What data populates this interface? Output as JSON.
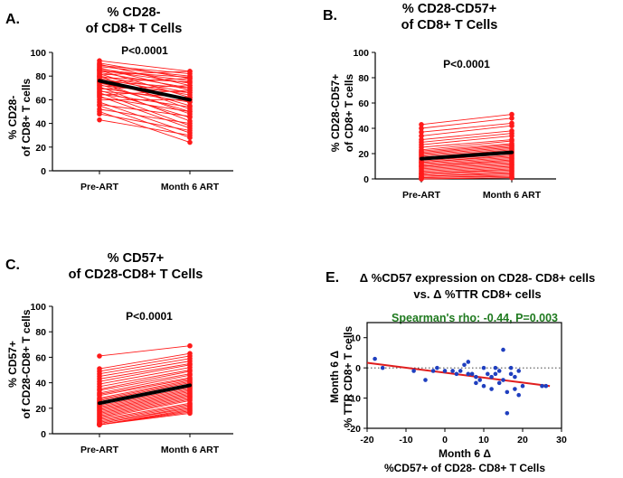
{
  "colors": {
    "lines": "#ff1a1a",
    "mean": "#000000",
    "points": "#1f3fbf",
    "regression": "#e01e1e",
    "annotation": "#1f7a1f"
  },
  "chart_data": [
    {
      "id": "A",
      "type": "line",
      "panel_label": "A.",
      "title_lines": [
        "% CD28-",
        "of CD8+ T Cells"
      ],
      "ylabel_lines": [
        "% CD28-",
        "of CD8+ T cells"
      ],
      "categories": [
        "Pre-ART",
        "Month 6 ART"
      ],
      "ylim": [
        0,
        100
      ],
      "yticks": [
        0,
        20,
        40,
        60,
        80,
        100
      ],
      "annotation": "P<0.0001",
      "mean": [
        76,
        60
      ],
      "pairs": [
        [
          93,
          84
        ],
        [
          91,
          78
        ],
        [
          90,
          72
        ],
        [
          89,
          82
        ],
        [
          88,
          80
        ],
        [
          87,
          68
        ],
        [
          86,
          76
        ],
        [
          85,
          74
        ],
        [
          85,
          62
        ],
        [
          84,
          79
        ],
        [
          83,
          70
        ],
        [
          82,
          58
        ],
        [
          81,
          84
        ],
        [
          80,
          66
        ],
        [
          80,
          52
        ],
        [
          79,
          75
        ],
        [
          78,
          64
        ],
        [
          77,
          55
        ],
        [
          76,
          70
        ],
        [
          75,
          48
        ],
        [
          75,
          78
        ],
        [
          74,
          60
        ],
        [
          73,
          50
        ],
        [
          72,
          66
        ],
        [
          71,
          42
        ],
        [
          70,
          58
        ],
        [
          69,
          72
        ],
        [
          68,
          45
        ],
        [
          67,
          62
        ],
        [
          66,
          38
        ],
        [
          65,
          54
        ],
        [
          64,
          68
        ],
        [
          63,
          36
        ],
        [
          62,
          50
        ],
        [
          60,
          60
        ],
        [
          58,
          32
        ],
        [
          56,
          46
        ],
        [
          55,
          28
        ],
        [
          52,
          40
        ],
        [
          50,
          24
        ],
        [
          48,
          34
        ],
        [
          43,
          30
        ]
      ]
    },
    {
      "id": "B",
      "type": "line",
      "panel_label": "B.",
      "title_lines": [
        "% CD28-CD57+",
        "of CD8+ T Cells"
      ],
      "ylabel_lines": [
        "% CD28-CD57+",
        "of CD8+ T cells"
      ],
      "categories": [
        "Pre-ART",
        "Month 6 ART"
      ],
      "ylim": [
        0,
        100
      ],
      "yticks": [
        0,
        20,
        40,
        60,
        80,
        100
      ],
      "annotation": "P<0.0001",
      "mean": [
        16,
        21
      ],
      "pairs": [
        [
          43,
          51
        ],
        [
          40,
          48
        ],
        [
          37,
          44
        ],
        [
          34,
          42
        ],
        [
          31,
          38
        ],
        [
          29,
          36
        ],
        [
          27,
          34
        ],
        [
          25,
          31
        ],
        [
          23,
          30
        ],
        [
          22,
          28
        ],
        [
          21,
          27
        ],
        [
          20,
          26
        ],
        [
          19,
          25
        ],
        [
          18,
          24
        ],
        [
          17,
          23
        ],
        [
          16,
          22
        ],
        [
          15,
          21
        ],
        [
          14,
          20
        ],
        [
          13,
          19
        ],
        [
          13,
          18
        ],
        [
          12,
          17
        ],
        [
          11,
          16
        ],
        [
          10,
          15
        ],
        [
          10,
          14
        ],
        [
          9,
          13
        ],
        [
          8,
          12
        ],
        [
          7,
          11
        ],
        [
          6,
          10
        ],
        [
          5,
          9
        ],
        [
          4,
          8
        ],
        [
          4,
          7
        ],
        [
          3,
          6
        ],
        [
          2,
          5
        ],
        [
          2,
          4
        ],
        [
          1,
          3
        ],
        [
          1,
          2
        ],
        [
          0,
          1
        ],
        [
          0,
          1
        ]
      ]
    },
    {
      "id": "C",
      "type": "line",
      "panel_label": "C.",
      "title_lines": [
        "% CD57+",
        "of CD28-CD8+ T Cells"
      ],
      "ylabel_lines": [
        "% CD57+",
        "of CD28-CD8+ T cells"
      ],
      "categories": [
        "Pre-ART",
        "Month 6 ART"
      ],
      "ylim": [
        0,
        100
      ],
      "yticks": [
        0,
        20,
        40,
        60,
        80,
        100
      ],
      "annotation": "P<0.0001",
      "mean": [
        24,
        38
      ],
      "pairs": [
        [
          61,
          69
        ],
        [
          51,
          63
        ],
        [
          49,
          61
        ],
        [
          47,
          59
        ],
        [
          45,
          57
        ],
        [
          43,
          55
        ],
        [
          41,
          54
        ],
        [
          39,
          52
        ],
        [
          37,
          50
        ],
        [
          35,
          49
        ],
        [
          34,
          47
        ],
        [
          32,
          46
        ],
        [
          31,
          44
        ],
        [
          30,
          43
        ],
        [
          28,
          42
        ],
        [
          27,
          41
        ],
        [
          26,
          40
        ],
        [
          25,
          39
        ],
        [
          24,
          38
        ],
        [
          23,
          37
        ],
        [
          22,
          36
        ],
        [
          21,
          35
        ],
        [
          20,
          34
        ],
        [
          19,
          33
        ],
        [
          18,
          32
        ],
        [
          17,
          31
        ],
        [
          16,
          30
        ],
        [
          15,
          29
        ],
        [
          14,
          28
        ],
        [
          13,
          27
        ],
        [
          12,
          26
        ],
        [
          11,
          24
        ],
        [
          10,
          23
        ],
        [
          9,
          22
        ],
        [
          8,
          21
        ],
        [
          8,
          20
        ],
        [
          7,
          19
        ],
        [
          7,
          18
        ],
        [
          7,
          17
        ],
        [
          7,
          16
        ]
      ]
    },
    {
      "id": "E",
      "type": "scatter",
      "panel_label": "E.",
      "title_lines": [
        "Δ %CD57 expression on CD28- CD8+ cells",
        "vs. Δ %TTR CD8+ cells"
      ],
      "ylabel_lines": [
        "Month 6 Δ",
        "% TTR CD8+ T cells"
      ],
      "xlabel_lines": [
        "Month 6 Δ",
        "%CD57+ of CD28- CD8+ T Cells"
      ],
      "xlim": [
        -20,
        30
      ],
      "ylim": [
        -20,
        15
      ],
      "xticks": [
        -20,
        -10,
        0,
        10,
        20,
        30
      ],
      "yticks": [
        -20,
        -10,
        0,
        10
      ],
      "annotation": "Spearman's rho: -0.44, P=0.003",
      "regression": {
        "x": [
          -20,
          27
        ],
        "y": [
          1.7,
          -6
        ]
      },
      "points": [
        [
          -18,
          3
        ],
        [
          -16,
          0
        ],
        [
          -8,
          -1
        ],
        [
          -5,
          -4
        ],
        [
          -3,
          -1
        ],
        [
          -2,
          0
        ],
        [
          0,
          -1
        ],
        [
          2,
          -1
        ],
        [
          3,
          -2
        ],
        [
          4,
          -1
        ],
        [
          5,
          1
        ],
        [
          6,
          -2
        ],
        [
          6,
          2
        ],
        [
          7,
          -2
        ],
        [
          8,
          -3
        ],
        [
          8,
          -5
        ],
        [
          9,
          -4
        ],
        [
          10,
          0
        ],
        [
          10,
          -6
        ],
        [
          11,
          -2
        ],
        [
          12,
          -3
        ],
        [
          12,
          -7
        ],
        [
          13,
          0
        ],
        [
          13,
          -2
        ],
        [
          14,
          -1
        ],
        [
          14,
          -5
        ],
        [
          15,
          -4
        ],
        [
          15,
          6
        ],
        [
          16,
          -15
        ],
        [
          16,
          -8
        ],
        [
          17,
          0
        ],
        [
          17,
          -2
        ],
        [
          18,
          -3
        ],
        [
          18,
          -7
        ],
        [
          19,
          -1
        ],
        [
          19,
          -9
        ],
        [
          20,
          -6
        ],
        [
          25,
          -6
        ],
        [
          26,
          -6
        ]
      ]
    }
  ]
}
